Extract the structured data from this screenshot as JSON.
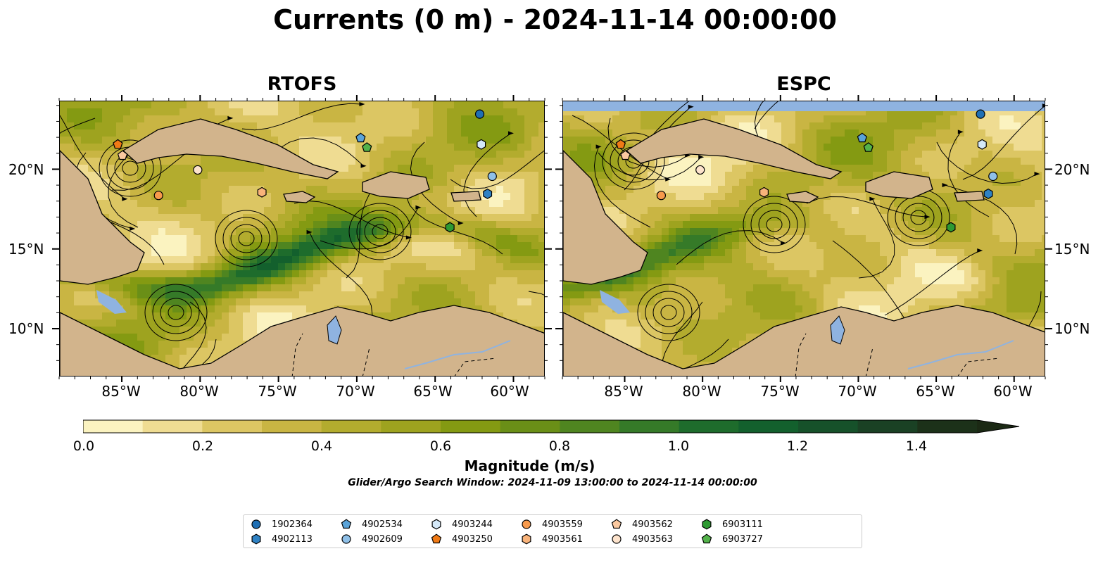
{
  "title": "Currents (0 m) - 2024-11-14 00:00:00",
  "colors": {
    "land": "#d2b48c",
    "water_body": "#8fb3e0",
    "coastline": "#000000",
    "streamline": "#000000",
    "field_palette": [
      "#fbf3c0",
      "#efdc92",
      "#dcc663",
      "#c9b543",
      "#b3ac2e",
      "#9ea31f",
      "#849a12",
      "#6a8f17",
      "#4f8520",
      "#357a28",
      "#1e6c2c",
      "#13602d",
      "#16512a",
      "#1a4124",
      "#1c3119",
      "#1b2914"
    ]
  },
  "panels": [
    {
      "title": "RTOFS",
      "lon_ticks": [
        "85°W",
        "80°W",
        "75°W",
        "70°W",
        "65°W",
        "60°W"
      ],
      "lat_ticks": [
        "20°N",
        "15°N",
        "10°N"
      ],
      "lat_labels_side": "left",
      "markers": [
        {
          "id": "1902364",
          "lon": -62.2,
          "lat": 23.5
        },
        {
          "id": "4902113",
          "lon": -61.7,
          "lat": 18.5
        },
        {
          "id": "4902534",
          "lon": -69.8,
          "lat": 22.0
        },
        {
          "id": "4902609",
          "lon": -61.4,
          "lat": 19.6
        },
        {
          "id": "4903244",
          "lon": -62.1,
          "lat": 21.6
        },
        {
          "id": "4903250",
          "lon": -85.3,
          "lat": 21.6
        },
        {
          "id": "4903559",
          "lon": -82.7,
          "lat": 18.4
        },
        {
          "id": "4903561",
          "lon": -76.1,
          "lat": 18.6
        },
        {
          "id": "4903562",
          "lon": -85.0,
          "lat": 20.9
        },
        {
          "id": "4903563",
          "lon": -80.2,
          "lat": 20.0
        },
        {
          "id": "6903111",
          "lon": -64.1,
          "lat": 16.4
        },
        {
          "id": "6903727",
          "lon": -69.4,
          "lat": 21.4
        }
      ]
    },
    {
      "title": "ESPC",
      "lon_ticks": [
        "85°W",
        "80°W",
        "75°W",
        "70°W",
        "65°W",
        "60°W"
      ],
      "lat_ticks": [
        "20°N",
        "15°N",
        "10°N"
      ],
      "lat_labels_side": "right",
      "markers": [
        {
          "id": "1902364",
          "lon": -62.2,
          "lat": 23.5
        },
        {
          "id": "4902113",
          "lon": -61.7,
          "lat": 18.5
        },
        {
          "id": "4902534",
          "lon": -69.8,
          "lat": 22.0
        },
        {
          "id": "4902609",
          "lon": -61.4,
          "lat": 19.6
        },
        {
          "id": "4903244",
          "lon": -62.1,
          "lat": 21.6
        },
        {
          "id": "4903250",
          "lon": -85.3,
          "lat": 21.6
        },
        {
          "id": "4903559",
          "lon": -82.7,
          "lat": 18.4
        },
        {
          "id": "4903561",
          "lon": -76.1,
          "lat": 18.6
        },
        {
          "id": "4903562",
          "lon": -85.0,
          "lat": 20.9
        },
        {
          "id": "4903563",
          "lon": -80.2,
          "lat": 20.0
        },
        {
          "id": "6903111",
          "lon": -64.1,
          "lat": 16.4
        },
        {
          "id": "6903727",
          "lon": -69.4,
          "lat": 21.4
        }
      ]
    }
  ],
  "map_extent": {
    "lon_min": -89,
    "lon_max": -58,
    "lat_min": 7,
    "lat_max": 24.3
  },
  "colorbar": {
    "label": "Magnitude (m/s)",
    "min": 0.0,
    "max": 1.5,
    "step": 0.1,
    "extend": "max",
    "tick_labels": [
      "0.0",
      "0.2",
      "0.4",
      "0.6",
      "0.8",
      "1.0",
      "1.2",
      "1.4"
    ]
  },
  "search_window": "Glider/Argo Search Window: 2024-11-09 13:00:00 to 2024-11-14 00:00:00",
  "legend": [
    {
      "id": "1902364",
      "shape": "circle",
      "color": "#1f6fb4"
    },
    {
      "id": "4902113",
      "shape": "hexagon",
      "color": "#2f82c4"
    },
    {
      "id": "4902534",
      "shape": "pentagon",
      "color": "#5aa3d8"
    },
    {
      "id": "4902609",
      "shape": "circle",
      "color": "#8fc0e8"
    },
    {
      "id": "4903244",
      "shape": "hexagon",
      "color": "#d4e8f8"
    },
    {
      "id": "4903250",
      "shape": "pentagon",
      "color": "#f07a16"
    },
    {
      "id": "4903559",
      "shape": "circle",
      "color": "#f79a4c"
    },
    {
      "id": "4903561",
      "shape": "hexagon",
      "color": "#f9b37a"
    },
    {
      "id": "4903562",
      "shape": "pentagon",
      "color": "#fbc9a0"
    },
    {
      "id": "4903563",
      "shape": "circle",
      "color": "#fde3cc"
    },
    {
      "id": "6903111",
      "shape": "hexagon",
      "color": "#2e9a32"
    },
    {
      "id": "6903727",
      "shape": "pentagon",
      "color": "#53b24a"
    }
  ]
}
